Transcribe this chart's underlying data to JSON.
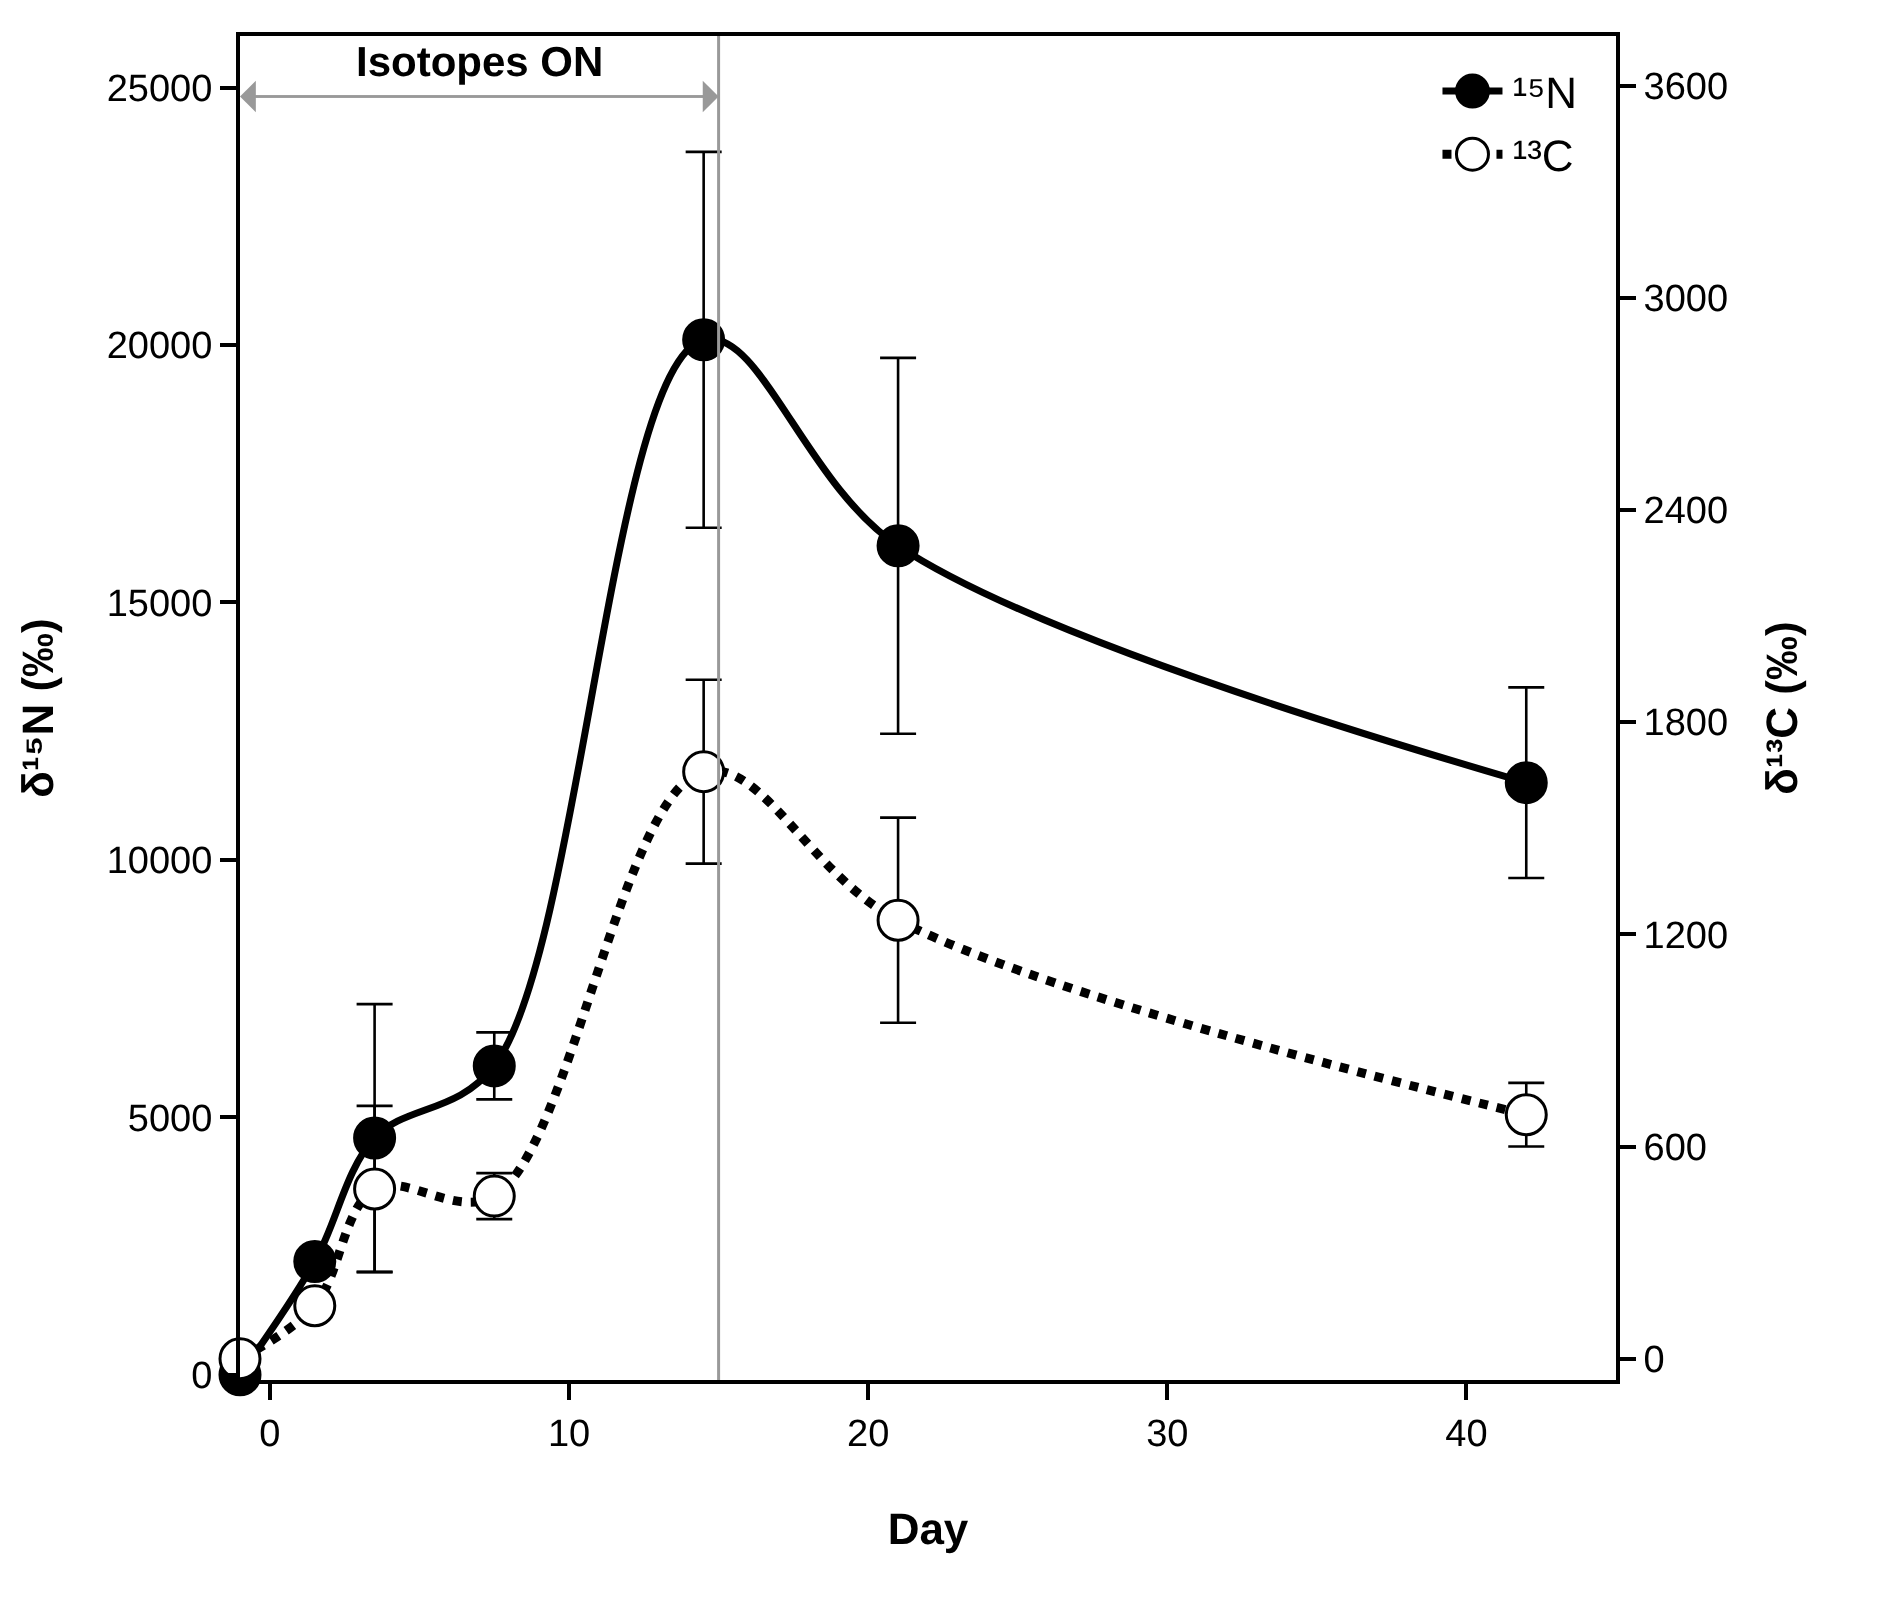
{
  "chart_data": {
    "type": "line",
    "xlabel": "Day",
    "ylabel": "δ¹⁵N (‰)",
    "y2label": "δ¹³C (‰)",
    "series": [
      {
        "name": "¹⁵N",
        "color": "#000000",
        "line_style": "solid",
        "x": [
          -1,
          1.5,
          3.5,
          7.5,
          14.5,
          21,
          42
        ],
        "values": [
          0,
          2200,
          4600,
          6000,
          20100,
          16100,
          11500
        ],
        "errors": [
          null,
          null,
          2600,
          650,
          3650,
          3650,
          1850
        ]
      },
      {
        "name": "¹³C",
        "color": "#000000",
        "line_style": "dotted",
        "axis": "y2",
        "x": [
          -1,
          1.5,
          3.5,
          7.5,
          14.5,
          21,
          42
        ],
        "values": [
          0,
          150,
          480,
          460,
          1660,
          1240,
          690
        ],
        "errors": [
          null,
          null,
          235,
          65,
          260,
          290,
          90
        ]
      }
    ],
    "xlim": [
      -1,
      45
    ],
    "xticks": [
      0,
      10,
      20,
      30,
      40
    ],
    "ylim": [
      -100,
      26000
    ],
    "yticks": [
      0,
      5000,
      10000,
      15000,
      20000,
      25000
    ],
    "y2lim": [
      -60,
      3740
    ],
    "y2ticks": [
      0,
      600,
      1200,
      1800,
      2400,
      3000,
      3600
    ],
    "ref_lines": [
      {
        "axis": "x",
        "value": 15,
        "label": "Isotopes ON",
        "color": "#999999"
      }
    ],
    "marker": "circle",
    "legend": "top right"
  }
}
